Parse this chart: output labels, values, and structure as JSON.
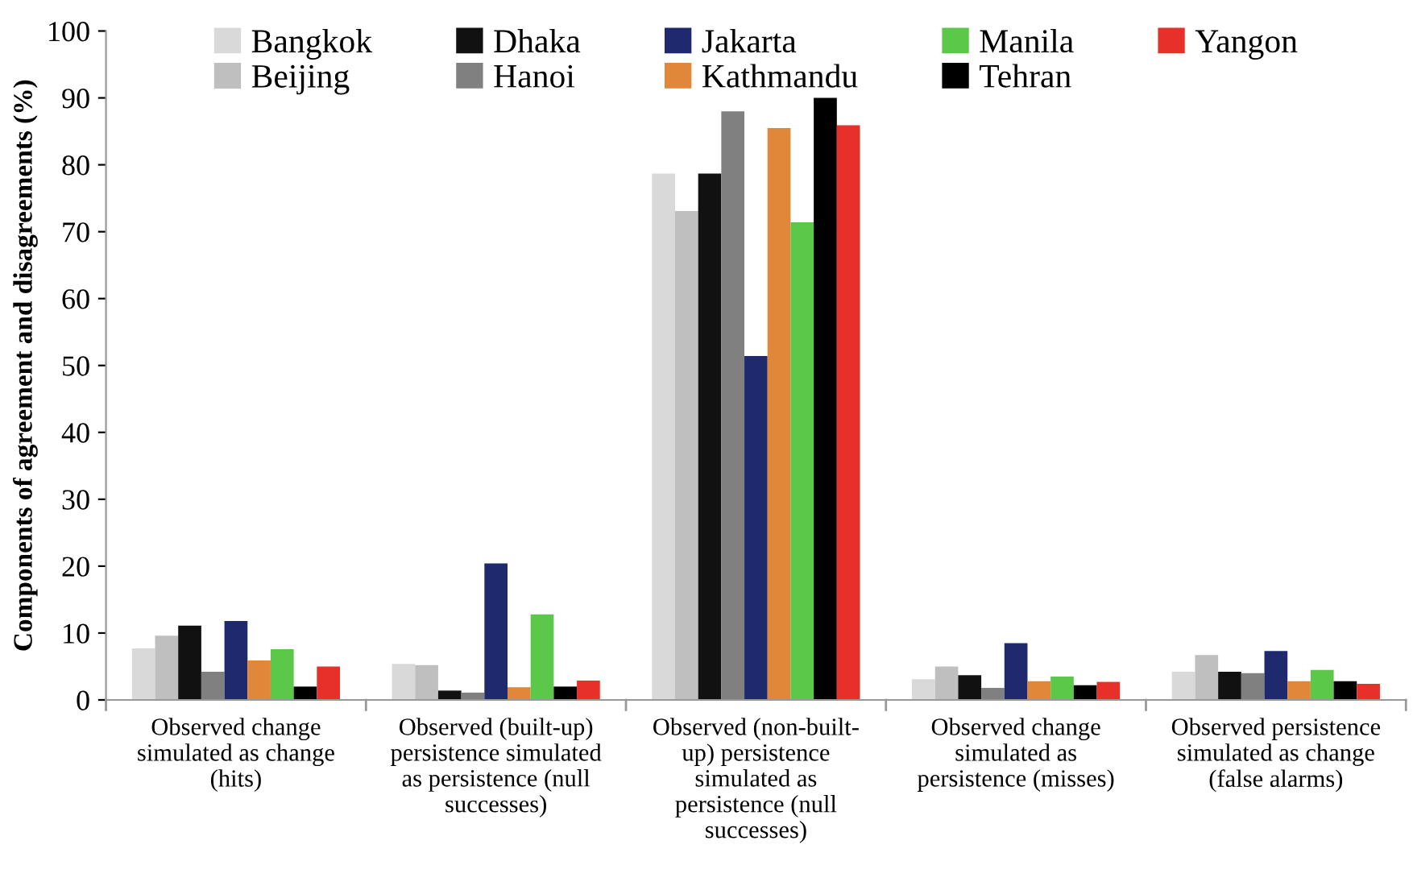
{
  "chart_data": {
    "type": "bar",
    "ylabel": "Components of agreement and disagreements (%)",
    "categories": [
      "Observed change\nsimulated as change\n(hits)",
      "Observed (built-up)\npersistence simulated\nas persistence (null\nsuccesses)",
      "Observed (non-built-\nup) persistence\nsimulated as\npersistence (null\nsuccesses)",
      "Observed change\nsimulated as\npersistence (misses)",
      "Observed persistence\nsimulated as change\n(false alarms)"
    ],
    "series": [
      {
        "name": "Bangkok",
        "color": "#d9d9d9",
        "values": [
          7.7,
          5.4,
          78.7,
          3.1,
          4.2
        ]
      },
      {
        "name": "Beijing",
        "color": "#bfbfbf",
        "values": [
          9.6,
          5.2,
          73.1,
          5.0,
          6.7
        ]
      },
      {
        "name": "Dhaka",
        "color": "#111111",
        "values": [
          11.1,
          1.4,
          78.7,
          3.7,
          4.2
        ]
      },
      {
        "name": "Hanoi",
        "color": "#808080",
        "values": [
          4.2,
          1.1,
          88.0,
          1.8,
          4.0
        ]
      },
      {
        "name": "Jakarta",
        "color": "#1f2a6e",
        "values": [
          11.8,
          20.4,
          51.4,
          8.5,
          7.3
        ]
      },
      {
        "name": "Kathmandu",
        "color": "#e0873a",
        "values": [
          5.9,
          1.9,
          85.5,
          2.8,
          2.8
        ]
      },
      {
        "name": "Manila",
        "color": "#5cc84a",
        "values": [
          7.6,
          12.8,
          71.4,
          3.5,
          4.5
        ]
      },
      {
        "name": "Tehran",
        "color": "#000000",
        "values": [
          2.0,
          2.0,
          90.0,
          2.2,
          2.8
        ]
      },
      {
        "name": "Yangon",
        "color": "#e8302a",
        "values": [
          5.0,
          2.9,
          85.9,
          2.7,
          2.4
        ]
      }
    ],
    "ylim": [
      0,
      100
    ],
    "yticks": [
      0,
      10,
      20,
      30,
      40,
      50,
      60,
      70,
      80,
      90,
      100
    ],
    "grid": false,
    "legend": "top"
  }
}
